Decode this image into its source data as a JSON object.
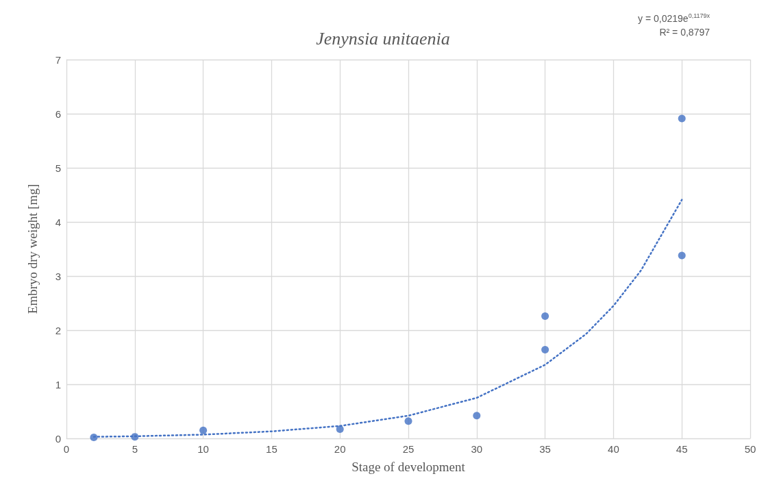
{
  "chart_data": {
    "type": "scatter",
    "title": "Jenynsia unitaenia",
    "xlabel": "Stage of development",
    "ylabel": "Embryo dry weight [mg]",
    "xlim": [
      0,
      50
    ],
    "xticks": [
      0,
      5,
      10,
      15,
      20,
      25,
      30,
      35,
      40,
      45,
      50
    ],
    "ylim": [
      0,
      7
    ],
    "yticks": [
      0,
      1,
      2,
      3,
      4,
      5,
      6,
      7
    ],
    "grid": true,
    "series": [
      {
        "color": "#4472c4",
        "marker": "circle",
        "x": [
          2,
          5,
          10,
          20,
          25,
          30,
          35,
          35,
          45,
          45
        ],
        "values": [
          0.02,
          0.03,
          0.15,
          0.17,
          0.32,
          0.42,
          2.26,
          1.64,
          5.91,
          3.38
        ]
      },
      {
        "type": "line",
        "color": "#4472c4",
        "marker": "none",
        "line_style": "dotted",
        "x": [
          2,
          5,
          10,
          15,
          20,
          25,
          30,
          35,
          38,
          40,
          42,
          45
        ],
        "values": [
          0.03,
          0.04,
          0.07,
          0.13,
          0.23,
          0.42,
          0.75,
          1.36,
          1.93,
          2.45,
          3.1,
          4.41
        ]
      }
    ],
    "annotations": [
      "y = 0,0219e$^{0,1179x}$",
      "R² = 0,8797"
    ]
  }
}
